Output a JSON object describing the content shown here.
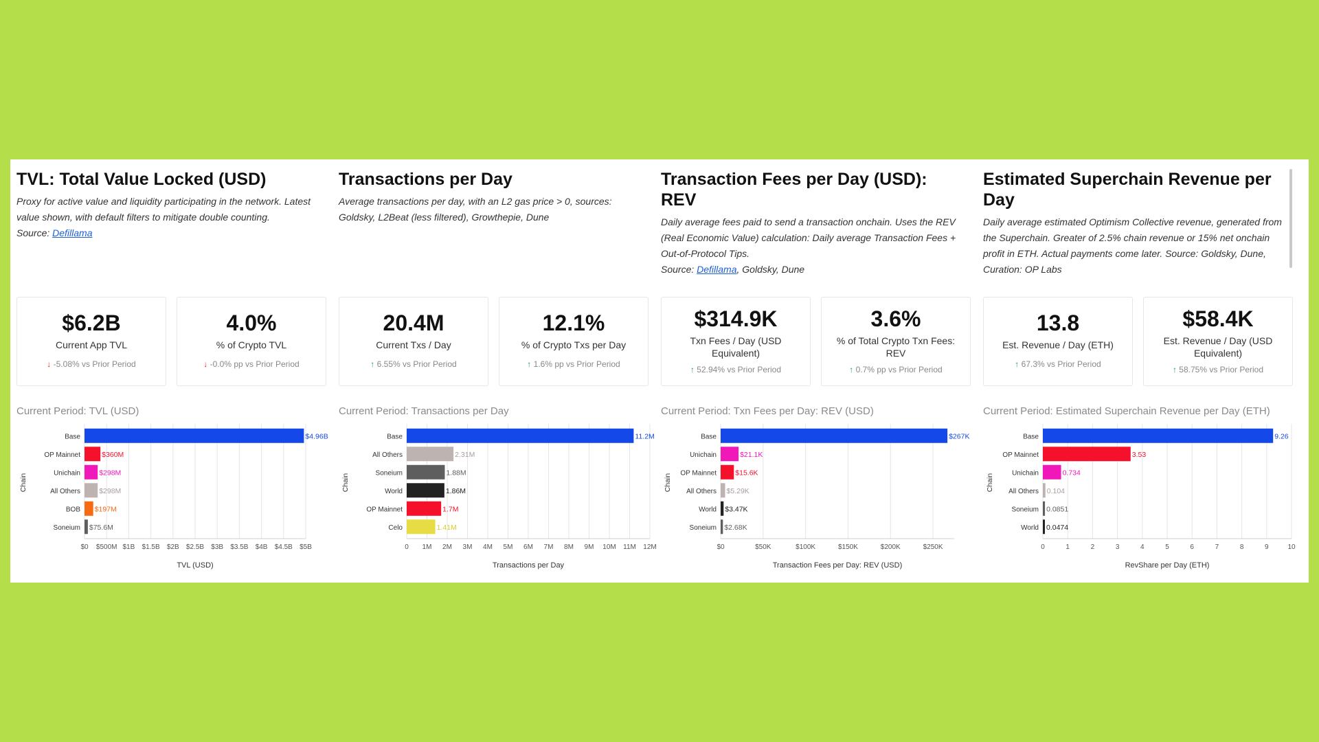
{
  "sections": [
    {
      "title": "TVL: Total Value Locked (USD)",
      "desc": "Proxy for active value and liquidity participating in the network. Latest value shown, with default filters to mitigate double counting.",
      "source_label": "Source: ",
      "source_link": "Defillama",
      "source_extra": "",
      "cards": [
        {
          "value": "$6.2B",
          "label": "Current App TVL",
          "dir": "down",
          "arrow": "↓",
          "change": "-5.08% vs Prior Period"
        },
        {
          "value": "4.0%",
          "label": "% of Crypto TVL",
          "dir": "down",
          "arrow": "↓",
          "change": "-0.0% pp vs Prior Period"
        }
      ],
      "chart_title": "Current Period: TVL (USD)"
    },
    {
      "title": "Transactions per Day",
      "desc": "Average transactions per day, with an L2 gas price > 0, sources: Goldsky, L2Beat (less filtered), Growthepie, Dune",
      "source_label": "",
      "source_link": "",
      "source_extra": "",
      "cards": [
        {
          "value": "20.4M",
          "label": "Current Txs / Day",
          "dir": "up",
          "arrow": "↑",
          "change": "6.55% vs Prior Period"
        },
        {
          "value": "12.1%",
          "label": "% of Crypto Txs per Day",
          "dir": "up",
          "arrow": "↑",
          "change": "1.6% pp vs Prior Period"
        }
      ],
      "chart_title": "Current Period: Transactions per Day"
    },
    {
      "title": "Transaction Fees per Day (USD): REV",
      "desc": "Daily average fees paid to send a transaction onchain. Uses the REV (Real Economic Value) calculation: Daily average Transaction Fees + Out-of-Protocol Tips.",
      "source_label": "Source: ",
      "source_link": "Defillama",
      "source_extra": ", Goldsky, Dune",
      "cards": [
        {
          "value": "$314.9K",
          "label": "Txn Fees / Day (USD Equivalent)",
          "dir": "up",
          "arrow": "↑",
          "change": "52.94% vs Prior Period"
        },
        {
          "value": "3.6%",
          "label": "% of Total Crypto Txn Fees: REV",
          "dir": "up",
          "arrow": "↑",
          "change": "0.7% pp vs Prior Period"
        }
      ],
      "chart_title": "Current Period: Txn Fees per Day: REV (USD)"
    },
    {
      "title": "Estimated Superchain Revenue per Day",
      "desc": "Daily average estimated Optimism Collective revenue, generated from the Superchain. Greater of 2.5% chain revenue or 15% net onchain profit in ETH. Actual payments come later. Source: Goldsky, Dune, Curation: OP Labs",
      "source_label": "",
      "source_link": "",
      "source_extra": "",
      "cards": [
        {
          "value": "13.8",
          "label": "Est. Revenue / Day (ETH)",
          "dir": "up",
          "arrow": "↑",
          "change": "67.3% vs Prior Period"
        },
        {
          "value": "$58.4K",
          "label": "Est. Revenue / Day (USD Equivalent)",
          "dir": "up",
          "arrow": "↑",
          "change": "58.75% vs Prior Period"
        }
      ],
      "chart_title": "Current Period: Estimated Superchain Revenue per Day (ETH)"
    }
  ],
  "chart_data": [
    {
      "type": "bar",
      "orientation": "horizontal",
      "title": "Current Period: TVL (USD)",
      "xlabel": "TVL (USD)",
      "ylabel": "Chain",
      "xlim": [
        0,
        5000000000
      ],
      "ticks": [
        0,
        500000000,
        1000000000,
        1500000000,
        2000000000,
        2500000000,
        3000000000,
        3500000000,
        4000000000,
        4500000000,
        5000000000
      ],
      "tick_labels": [
        "$0",
        "$500M",
        "$1B",
        "$1.5B",
        "$2B",
        "$2.5B",
        "$3B",
        "$3.5B",
        "$4B",
        "$4.5B",
        "$5B"
      ],
      "categories": [
        "Base",
        "OP Mainnet",
        "Unichain",
        "All Others",
        "BOB",
        "Soneium"
      ],
      "values": [
        4960000000,
        360000000,
        298000000,
        298000000,
        197000000,
        75600000
      ],
      "data_labels": [
        "$4.96B",
        "$360M",
        "$298M",
        "$298M",
        "$197M",
        "$75.6M"
      ],
      "colors": [
        "#1448e8",
        "#f5102c",
        "#f018b8",
        "#bdb3b1",
        "#f56a12",
        "#5e5e5e"
      ]
    },
    {
      "type": "bar",
      "orientation": "horizontal",
      "title": "Current Period: Transactions per Day",
      "xlabel": "Transactions per Day",
      "ylabel": "Chain",
      "xlim": [
        0,
        12000000
      ],
      "ticks": [
        0,
        1000000,
        2000000,
        3000000,
        4000000,
        5000000,
        6000000,
        7000000,
        8000000,
        9000000,
        10000000,
        11000000,
        12000000
      ],
      "tick_labels": [
        "0",
        "1M",
        "2M",
        "3M",
        "4M",
        "5M",
        "6M",
        "7M",
        "8M",
        "9M",
        "10M",
        "11M",
        "12M"
      ],
      "categories": [
        "Base",
        "All Others",
        "Soneium",
        "World",
        "OP Mainnet",
        "Celo"
      ],
      "values": [
        11200000,
        2310000,
        1880000,
        1860000,
        1700000,
        1410000
      ],
      "data_labels": [
        "11.2M",
        "2.31M",
        "1.88M",
        "1.86M",
        "1.7M",
        "1.41M"
      ],
      "colors": [
        "#1448e8",
        "#bdb3b1",
        "#5e5e5e",
        "#222222",
        "#f5102c",
        "#e8dc44"
      ]
    },
    {
      "type": "bar",
      "orientation": "horizontal",
      "title": "Current Period: Txn Fees per Day: REV (USD)",
      "xlabel": "Transaction Fees per Day: REV (USD)",
      "ylabel": "Chain",
      "xlim": [
        0,
        275000
      ],
      "ticks": [
        0,
        50000,
        100000,
        150000,
        200000,
        250000
      ],
      "tick_labels": [
        "$0",
        "$50K",
        "$100K",
        "$150K",
        "$200K",
        "$250K"
      ],
      "categories": [
        "Base",
        "Unichain",
        "OP Mainnet",
        "All Others",
        "World",
        "Soneium"
      ],
      "values": [
        267000,
        21100,
        15600,
        5290,
        3470,
        2680
      ],
      "data_labels": [
        "$267K",
        "$21.1K",
        "$15.6K",
        "$5.29K",
        "$3.47K",
        "$2.68K"
      ],
      "colors": [
        "#1448e8",
        "#f018b8",
        "#f5102c",
        "#bdb3b1",
        "#222222",
        "#5e5e5e"
      ]
    },
    {
      "type": "bar",
      "orientation": "horizontal",
      "title": "Current Period: Estimated Superchain Revenue per Day (ETH)",
      "xlabel": "RevShare per Day (ETH)",
      "ylabel": "Chain",
      "xlim": [
        0,
        10
      ],
      "ticks": [
        0,
        1,
        2,
        3,
        4,
        5,
        6,
        7,
        8,
        9,
        10
      ],
      "tick_labels": [
        "0",
        "1",
        "2",
        "3",
        "4",
        "5",
        "6",
        "7",
        "8",
        "9",
        "10"
      ],
      "categories": [
        "Base",
        "OP Mainnet",
        "Unichain",
        "All Others",
        "Soneium",
        "World"
      ],
      "values": [
        9.26,
        3.53,
        0.734,
        0.104,
        0.0851,
        0.0474
      ],
      "data_labels": [
        "9.26",
        "3.53",
        "0.734",
        "0.104",
        "0.0851",
        "0.0474"
      ],
      "colors": [
        "#1448e8",
        "#f5102c",
        "#f018b8",
        "#bdb3b1",
        "#5e5e5e",
        "#222222"
      ]
    }
  ]
}
